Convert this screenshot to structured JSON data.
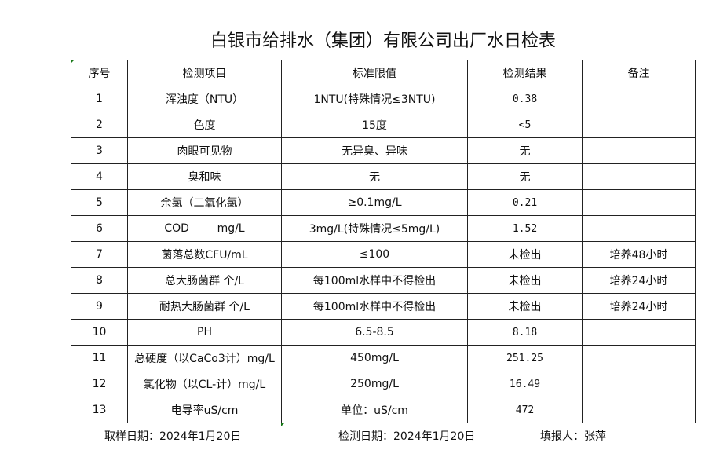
{
  "title": "白银市给排水（集团）有限公司出厂水日检表",
  "headers": [
    "序号",
    "检测项目",
    "标准限值",
    "检测结果",
    "备注"
  ],
  "rows": [
    [
      "1",
      "浑浊度（NTU）",
      "1NTU(特殊情况≤3NTU)",
      "0.38",
      ""
    ],
    [
      "2",
      "色度",
      "15度",
      "<5",
      ""
    ],
    [
      "3",
      "肉眼可见物",
      "无异臭、异味",
      "无",
      ""
    ],
    [
      "4",
      "臭和味",
      "无",
      "无",
      ""
    ],
    [
      "5",
      "余氯（二氧化氯）",
      "≥0.1mg/L",
      "0.21",
      ""
    ],
    [
      "6",
      "COD        mg/L",
      "3mg/L(特殊情况≤5mg/L)",
      "1.52",
      ""
    ],
    [
      "7",
      "菌落总数CFU/mL",
      "≤100",
      "未检出",
      "培养48小时"
    ],
    [
      "8",
      "总大肠菌群 个/L",
      "每100ml水样中不得检出",
      "未检出",
      "培养24小时"
    ],
    [
      "9",
      "耐热大肠菌群 个/L",
      "每100ml水样中不得检出",
      "未检出",
      "培养24小时"
    ],
    [
      "10",
      "PH",
      "6.5-8.5",
      "8.18",
      ""
    ],
    [
      "11",
      "总硬度（以CaCo3计）mg/L",
      "450mg/L",
      "251.25",
      ""
    ],
    [
      "12",
      "氯化物（以CL-计）mg/L",
      "250mg/L",
      "16.49",
      ""
    ],
    [
      "13",
      "电导率uS/cm",
      "单位：uS/cm",
      "472",
      ""
    ]
  ],
  "footer": {
    "sampling_date": "取样日期：2024年1月20日",
    "test_date": "检测日期：2024年1月20日",
    "reporter": "填报人：张萍"
  }
}
